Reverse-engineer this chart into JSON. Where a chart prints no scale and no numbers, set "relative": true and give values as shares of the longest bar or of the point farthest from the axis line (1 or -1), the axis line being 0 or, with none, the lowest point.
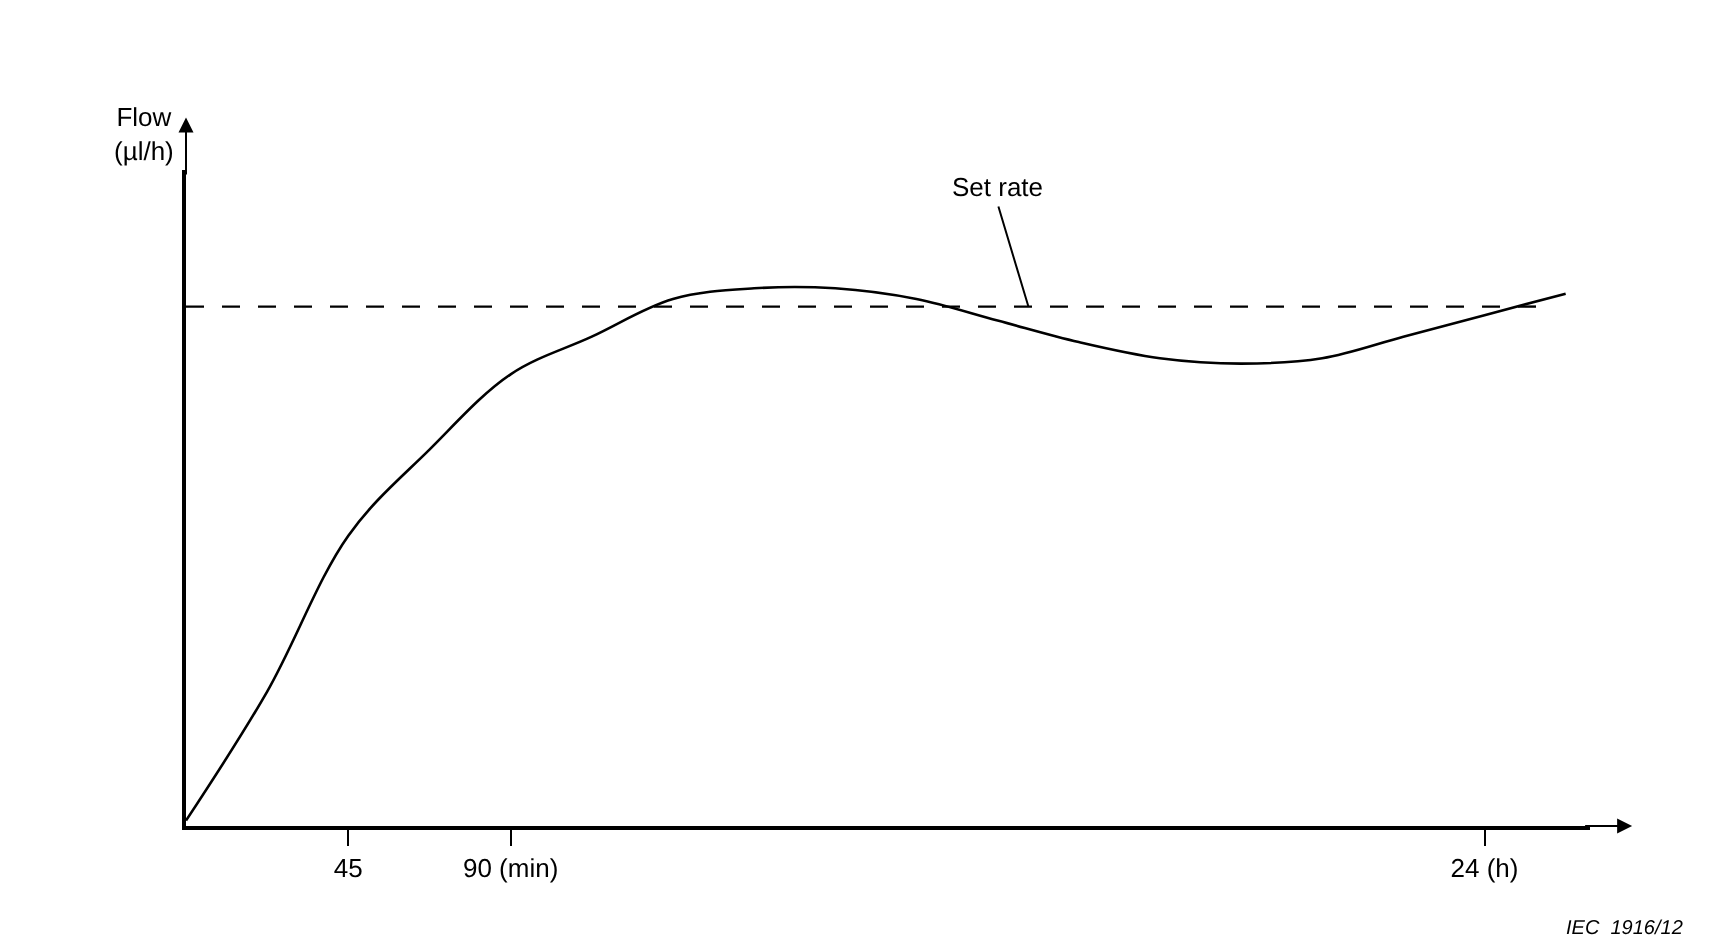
{
  "chart_data": {
    "type": "line",
    "relative": true,
    "marker": "none",
    "line_style": "solid",
    "categories": [
      null,
      null,
      "45",
      null,
      "90 (min)",
      null,
      null,
      null,
      null,
      null,
      null,
      null,
      null,
      null,
      null,
      null,
      "24 (h)",
      null
    ],
    "series": [
      {
        "color": "#000000",
        "values": [
          0.01,
          0.25,
          0.54,
          0.7,
          0.84,
          0.91,
          0.98,
          1.0,
          1.0,
          0.98,
          0.94,
          0.9,
          0.87,
          0.86,
          0.87,
          0.91,
          0.95,
          0.99
        ]
      }
    ],
    "tick_labels": "x",
    "ref_lines": [
      {
        "axis": "y",
        "value": 0.966,
        "label": "Set rate",
        "line_style": "dashed",
        "color": "#000000"
      }
    ],
    "annotations": [
      "Flow\n(µl/h)",
      "IEC  1916/12"
    ]
  }
}
